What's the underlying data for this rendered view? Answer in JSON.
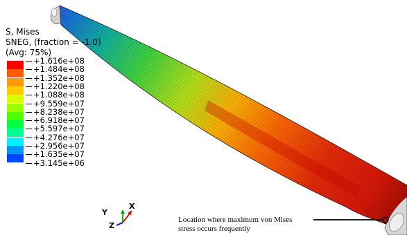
{
  "header": {
    "line1": "S, Mises",
    "line2": "SNEG, (fraction = -1.0)",
    "line3": "(Avg: 75%)"
  },
  "legend": {
    "values": [
      "+1.616e+08",
      "+1.484e+08",
      "+1.352e+08",
      "+1.220e+08",
      "+1.088e+08",
      "+9.559e+07",
      "+8.238e+07",
      "+6.918e+07",
      "+5.597e+07",
      "+4.276e+07",
      "+2.956e+07",
      "+1.635e+07",
      "+3.145e+06"
    ],
    "colors": [
      "#ff0000",
      "#ff5a00",
      "#ff9b00",
      "#ffce00",
      "#d8ff00",
      "#9bff00",
      "#4dff00",
      "#00ff45",
      "#00ff97",
      "#00f0ff",
      "#0096ff",
      "#0047ff",
      "#0000ff"
    ]
  },
  "triad": {
    "x": "X",
    "y": "Y",
    "z": "Z"
  },
  "annotation": {
    "line1": "Location where maximum von Mises",
    "line2": "stress occurs frequently"
  }
}
